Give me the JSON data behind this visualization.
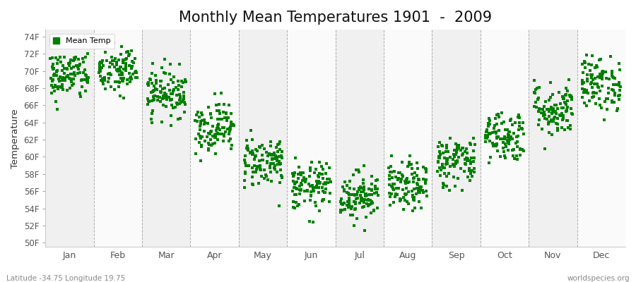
{
  "title": "Monthly Mean Temperatures 1901  -  2009",
  "ylabel": "Temperature",
  "xlabel_months": [
    "Jan",
    "Feb",
    "Mar",
    "Apr",
    "May",
    "Jun",
    "Jul",
    "Aug",
    "Sep",
    "Oct",
    "Nov",
    "Dec"
  ],
  "ytick_labels": [
    "50F",
    "52F",
    "54F",
    "56F",
    "58F",
    "60F",
    "62F",
    "64F",
    "66F",
    "68F",
    "70F",
    "72F",
    "74F"
  ],
  "ytick_values": [
    50,
    52,
    54,
    56,
    58,
    60,
    62,
    64,
    66,
    68,
    70,
    72,
    74
  ],
  "ylim": [
    49.5,
    74.8
  ],
  "legend_label": "Mean Temp",
  "marker_color": "#008000",
  "marker": "s",
  "marker_size": 2.5,
  "subtitle_left": "Latitude -34.75 Longitude 19.75",
  "subtitle_right": "worldspecies.org",
  "background_color": "#ffffff",
  "band_colors": [
    "#f0f0f0",
    "#fafafa"
  ],
  "title_fontsize": 15,
  "n_years": 109,
  "monthly_means_F": [
    69.5,
    70.0,
    67.5,
    63.5,
    59.5,
    56.5,
    55.5,
    56.5,
    59.5,
    62.5,
    65.5,
    68.5
  ],
  "monthly_std_F": [
    1.5,
    1.5,
    1.4,
    1.5,
    1.5,
    1.4,
    1.4,
    1.4,
    1.5,
    1.5,
    1.6,
    1.6
  ]
}
